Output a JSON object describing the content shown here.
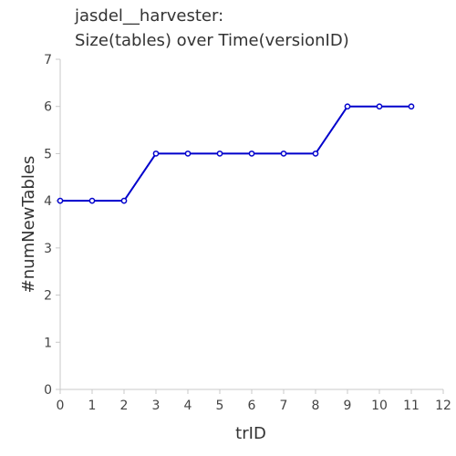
{
  "chart_data": {
    "type": "line",
    "title_lines": [
      "jasdel__harvester:",
      "Size(tables) over Time(versionID)"
    ],
    "xlabel": "trID",
    "ylabel": "#numNewTables",
    "xlim": [
      0,
      12
    ],
    "ylim": [
      0,
      7
    ],
    "x_ticks": [
      0,
      1,
      2,
      3,
      4,
      5,
      6,
      7,
      8,
      9,
      10,
      11,
      12
    ],
    "y_ticks": [
      0,
      1,
      2,
      3,
      4,
      5,
      6,
      7
    ],
    "grid": false,
    "series": [
      {
        "x": [
          0,
          1,
          2,
          3,
          4,
          5,
          6,
          7,
          8,
          9,
          10,
          11
        ],
        "y": [
          4,
          4,
          4,
          5,
          5,
          5,
          5,
          5,
          5,
          6,
          6,
          6
        ],
        "color": "#0000cc"
      }
    ]
  }
}
